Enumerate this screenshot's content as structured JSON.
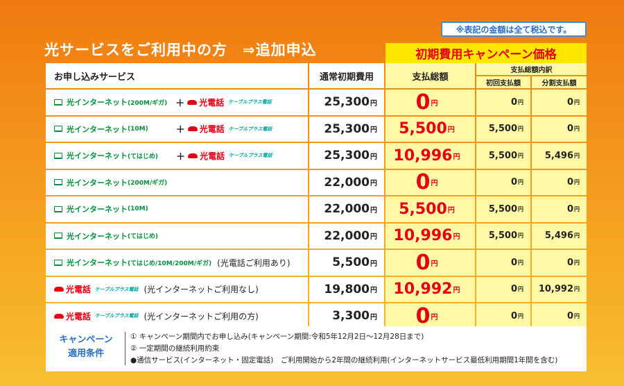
{
  "tax_note": "※表記の金額は全て税込です。",
  "title": "光サービスをご利用中の方　⇒追加申込",
  "campaign_header": "初期費用キャンペーン価格",
  "headers": {
    "service": "お申し込みサービス",
    "normal_fee": "通常初期費用",
    "total": "支払総額",
    "breakdown": "支払総額内訳",
    "first": "初回支払額",
    "split": "分割支払額"
  },
  "labels": {
    "internet": "光インターネット",
    "plus": "＋",
    "tel": "光電話",
    "cable": "ケーブルプラス電話",
    "yen": "円"
  },
  "rows": [
    {
      "speed": "(200M/ギガ)",
      "with_tel": true,
      "note": "",
      "normal": "25,300",
      "total": "0",
      "first": "0",
      "split": "0"
    },
    {
      "speed": "(10M)",
      "with_tel": true,
      "note": "",
      "normal": "25,300",
      "total": "5,500",
      "first": "5,500",
      "split": "0"
    },
    {
      "speed": "(てはじめ)",
      "with_tel": true,
      "note": "",
      "normal": "25,300",
      "total": "10,996",
      "first": "5,500",
      "split": "5,496"
    },
    {
      "speed": "(200M/ギガ)",
      "with_tel": false,
      "note": "",
      "normal": "22,000",
      "total": "0",
      "first": "0",
      "split": "0"
    },
    {
      "speed": "(10M)",
      "with_tel": false,
      "note": "",
      "normal": "22,000",
      "total": "5,500",
      "first": "5,500",
      "split": "0"
    },
    {
      "speed": "(てはじめ)",
      "with_tel": false,
      "note": "",
      "normal": "22,000",
      "total": "10,996",
      "first": "5,500",
      "split": "5,496"
    },
    {
      "speed": "(てはじめ/10M/200M/ギガ)",
      "with_tel": false,
      "note": "(光電話ご利用あり)",
      "normal": "5,500",
      "total": "0",
      "first": "0",
      "split": "0"
    },
    {
      "tel_only": true,
      "note": "(光インターネットご利用なし)",
      "normal": "19,800",
      "total": "10,992",
      "first": "0",
      "split": "10,992"
    },
    {
      "tel_only": true,
      "note": "(光インターネットご利用の方)",
      "normal": "3,300",
      "total": "0",
      "first": "0",
      "split": "0"
    }
  ],
  "conditions": {
    "title_line1": "キャンペーン",
    "title_line2": "適用条件",
    "line1": "① キャンペーン期間内でお申し込み(キャンペーン期間:令和5年12月2日～12月28日まで)",
    "line2": "② 一定期間の継続利用約束",
    "line3": "●通信サービス(インターネット・固定電話)　ご利用開始から2年間の継続利用(インターネットサービス最低利用期間1年間を含む)"
  }
}
